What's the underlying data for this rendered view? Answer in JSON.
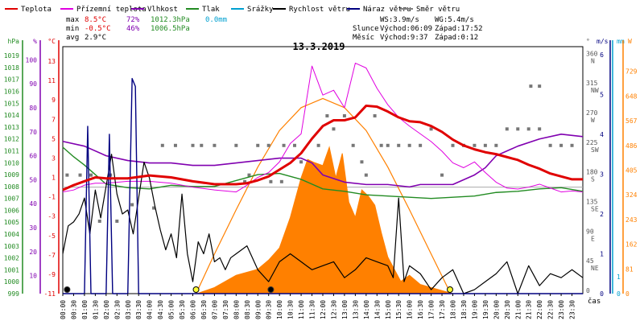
{
  "legend": [
    {
      "name": "legend-temperature",
      "label": "Teplota",
      "color": "#e00000"
    },
    {
      "name": "legend-ground-temperature",
      "label": "Přízemní teplota",
      "color": "#e000e0"
    },
    {
      "name": "legend-humidity",
      "label": "Vlhkost",
      "color": "#8000b0"
    },
    {
      "name": "legend-pressure",
      "label": "Tlak",
      "color": "#228b22"
    },
    {
      "name": "legend-precipitation",
      "label": "Srážky",
      "color": "#00a0d0"
    },
    {
      "name": "legend-wind-speed",
      "label": "Rychlost větru",
      "color": "#000000"
    },
    {
      "name": "legend-wind-gust",
      "label": "Náraz větru",
      "color": "#000080"
    },
    {
      "name": "legend-wind-direction",
      "label": "Směr větru",
      "color": "#808080"
    }
  ],
  "stats": {
    "max": {
      "label": "max",
      "temp": "8.5°C",
      "hum": "72%",
      "press": "1012.3hPa",
      "rain": "0.0mm"
    },
    "min": {
      "label": "min",
      "temp": "-0.5°C",
      "hum": "46%",
      "press": "1006.5hPa"
    },
    "avg": {
      "label": "avg",
      "temp": "2.9°C"
    }
  },
  "info": {
    "ws": "WS:3.9m/s",
    "wg": "WG:5.4m/s",
    "sun_label": "Slunce",
    "sunrise": "Východ:06:09",
    "sunset": "Západ:17:52",
    "moon_label": "Měsíc",
    "moonrise": "Východ:9:37",
    "moonset": "Západ:0:12"
  },
  "chart_data": {
    "type": "line",
    "title": "13.3.2019",
    "xlabel": "čas",
    "x_ticks": [
      "00:00",
      "00:30",
      "01:00",
      "01:30",
      "02:00",
      "02:30",
      "03:00",
      "03:30",
      "04:00",
      "04:30",
      "05:00",
      "05:30",
      "06:00",
      "06:30",
      "07:00",
      "07:30",
      "08:00",
      "08:30",
      "09:00",
      "09:30",
      "10:00",
      "10:30",
      "11:00",
      "11:30",
      "12:00",
      "12:30",
      "13:00",
      "13:30",
      "14:00",
      "14:30",
      "15:00",
      "15:30",
      "16:00",
      "16:30",
      "17:00",
      "17:30",
      "18:00",
      "18:30",
      "19:00",
      "19:30",
      "20:00",
      "20:30",
      "21:00",
      "21:30",
      "22:00",
      "22:30",
      "23:00",
      "23:30"
    ],
    "axes": {
      "pressure": {
        "label": "hPa",
        "ticks": [
          "999",
          "1000",
          "1001",
          "1002",
          "1003",
          "1004",
          "1005",
          "1006",
          "1007",
          "1008",
          "1009",
          "1010",
          "1011",
          "1012",
          "1013",
          "1014",
          "1015",
          "1016",
          "1017",
          "1018",
          "1019"
        ],
        "range": [
          999,
          1019.75
        ]
      },
      "humidity": {
        "label": "%",
        "ticks": [
          "10",
          "20",
          "30",
          "40",
          "50",
          "60",
          "70",
          "80",
          "90",
          "100"
        ],
        "range": [
          2.5,
          105.5
        ]
      },
      "temperature": {
        "label": "°C",
        "ticks": [
          "-11",
          "-9",
          "-7",
          "-5",
          "-3",
          "-1",
          "1",
          "3",
          "5",
          "7",
          "9",
          "11",
          "13"
        ],
        "range": [
          -11,
          14.5
        ]
      },
      "direction": {
        "label": "°",
        "ticks": [
          "0",
          "45 NE",
          "90 E",
          "135 SE",
          "180 S",
          "225 SW",
          "270 W",
          "315 NW",
          "360 N"
        ],
        "range": [
          0,
          375
        ]
      },
      "wind": {
        "label": "m/s",
        "ticks": [
          "0",
          "1",
          "2",
          "3",
          "4",
          "5",
          "6"
        ],
        "range": [
          0,
          6.2
        ]
      },
      "rain": {
        "label": "mm",
        "ticks": [
          "0",
          "1"
        ],
        "range": [
          0,
          14.5
        ]
      },
      "solar": {
        "label": "W",
        "ticks": [
          "0",
          "81",
          "162",
          "243",
          "324",
          "405",
          "486",
          "567",
          "648",
          "729"
        ],
        "range": [
          0,
          810
        ]
      }
    },
    "series": [
      {
        "name": "Teplota",
        "unit": "°C",
        "color": "#e00000",
        "x": [
          0,
          0.5,
          1,
          1.5,
          2,
          3,
          4,
          5,
          6,
          7,
          8,
          8.5,
          9,
          9.5,
          10,
          10.5,
          11,
          11.5,
          12,
          12.5,
          13,
          13.5,
          14,
          14.5,
          15,
          15.5,
          16,
          16.5,
          17,
          17.5,
          18,
          18.5,
          19,
          19.5,
          20,
          20.5,
          21,
          21.5,
          22,
          22.5,
          23,
          23.5,
          24
        ],
        "y": [
          -0.3,
          0.2,
          0.6,
          1.0,
          0.9,
          0.9,
          1.2,
          1.0,
          0.6,
          0.3,
          0.3,
          0.4,
          0.7,
          1.1,
          1.8,
          2.5,
          3.5,
          5.0,
          6.3,
          6.9,
          6.9,
          7.2,
          8.4,
          8.3,
          7.8,
          7.2,
          6.8,
          6.7,
          6.3,
          5.7,
          4.9,
          4.3,
          3.9,
          3.6,
          3.4,
          3.1,
          2.8,
          2.3,
          1.9,
          1.4,
          1.1,
          0.8,
          0.8
        ]
      },
      {
        "name": "Přízemní teplota",
        "unit": "°C",
        "color": "#e000e0",
        "x": [
          0,
          0.5,
          1,
          1.5,
          2,
          3,
          4,
          5,
          6,
          7,
          8,
          8.5,
          9,
          9.5,
          10,
          10.5,
          11,
          11.5,
          12,
          12.5,
          13,
          13.5,
          14,
          14.5,
          15,
          15.5,
          16,
          16.5,
          17,
          17.5,
          18,
          18.5,
          19,
          19.5,
          20,
          20.5,
          21,
          21.5,
          22,
          22.5,
          23,
          23.5,
          24
        ],
        "y": [
          -0.5,
          -0.3,
          0.2,
          0.4,
          0.4,
          0.6,
          0.6,
          0.4,
          0.0,
          -0.3,
          -0.5,
          0.2,
          1.0,
          1.5,
          2.6,
          4.5,
          5.5,
          12.5,
          9.5,
          10.0,
          8.2,
          12.8,
          12.3,
          10.2,
          8.5,
          7.2,
          6.3,
          5.5,
          4.7,
          3.7,
          2.5,
          2.0,
          2.6,
          1.5,
          0.5,
          -0.1,
          -0.2,
          0.0,
          0.3,
          -0.1,
          -0.5,
          -0.4,
          -0.5
        ]
      },
      {
        "name": "Vlhkost",
        "unit": "%",
        "color": "#8000b0",
        "x": [
          0,
          1,
          2,
          3,
          4,
          5,
          6,
          7,
          8,
          9,
          10,
          11,
          11.5,
          12,
          13,
          14,
          15,
          16,
          16.5,
          17,
          17.5,
          18,
          19,
          19.5,
          20,
          21,
          22,
          23,
          24
        ],
        "y": [
          66,
          64,
          60,
          58,
          57,
          57,
          56,
          56,
          57,
          58,
          59,
          59,
          57,
          52,
          49,
          48,
          48,
          47,
          48,
          48,
          48,
          48,
          52,
          55,
          60,
          64,
          67,
          69,
          68
        ]
      },
      {
        "name": "Tlak",
        "unit": "hPa",
        "color": "#228b22",
        "x": [
          0,
          0.5,
          1,
          1.5,
          2,
          3,
          4,
          5,
          6,
          7,
          8,
          9,
          10,
          11,
          12,
          13,
          14,
          15,
          16,
          17,
          18,
          19,
          20,
          21,
          22,
          23,
          24
        ],
        "y": [
          1011.3,
          1010.5,
          1009.8,
          1009.0,
          1008.2,
          1007.9,
          1007.8,
          1008.1,
          1008.0,
          1008.0,
          1008.5,
          1009.0,
          1009.1,
          1008.6,
          1007.8,
          1007.6,
          1007.3,
          1007.2,
          1007.1,
          1007.0,
          1007.1,
          1007.2,
          1007.5,
          1007.6,
          1007.8,
          1007.9,
          1007.6
        ]
      },
      {
        "name": "Rychlost větru",
        "unit": "m/s",
        "color": "#000000",
        "x": [
          0,
          0.25,
          0.5,
          0.75,
          1,
          1.25,
          1.5,
          1.75,
          2,
          2.25,
          2.5,
          2.75,
          3,
          3.25,
          3.5,
          3.75,
          4,
          4.25,
          4.5,
          4.75,
          5,
          5.25,
          5.5,
          5.75,
          6,
          6.25,
          6.5,
          6.75,
          7,
          7.25,
          7.5,
          7.75,
          8,
          8.5,
          9,
          9.5,
          10,
          10.5,
          11,
          11.5,
          12,
          12.5,
          13,
          13.5,
          14,
          14.5,
          15,
          15.25,
          15.5,
          15.75,
          16,
          16.5,
          17,
          17.5,
          18,
          18.5,
          19,
          19.5,
          20,
          20.5,
          21,
          21.5,
          22,
          22.5,
          23,
          23.5,
          24
        ],
        "y": [
          1.0,
          1.7,
          1.8,
          2.0,
          2.4,
          1.5,
          2.6,
          1.9,
          2.7,
          3.5,
          2.5,
          2.0,
          2.1,
          1.5,
          2.4,
          3.3,
          2.9,
          2.2,
          1.6,
          1.1,
          1.5,
          0.9,
          2.5,
          1.0,
          0.3,
          1.3,
          1.0,
          1.5,
          0.8,
          0.9,
          0.6,
          0.9,
          1.0,
          1.2,
          0.6,
          0.3,
          0.8,
          1.0,
          0.8,
          0.6,
          0.7,
          0.8,
          0.4,
          0.6,
          0.9,
          0.8,
          0.7,
          0.4,
          2.4,
          0.3,
          0.7,
          0.5,
          0.1,
          0.4,
          0.6,
          0.0,
          0.1,
          0.3,
          0.5,
          0.8,
          0.0,
          0.7,
          0.2,
          0.5,
          0.4,
          0.6,
          0.4
        ]
      },
      {
        "name": "Náraz větru",
        "unit": "m/s",
        "color": "#000080",
        "x": [
          0,
          1,
          1.15,
          1.3,
          1.5,
          2,
          2.15,
          2.3,
          2.5,
          3,
          3.2,
          3.35,
          3.5,
          4,
          24
        ],
        "y": [
          0,
          0,
          4.2,
          0,
          0,
          0,
          4.0,
          0,
          0,
          0,
          5.4,
          5.2,
          0,
          0,
          0
        ]
      },
      {
        "name": "Solar",
        "unit": "W",
        "color": "#ff8000",
        "x": [
          6.2,
          7,
          8,
          9,
          9.5,
          10,
          10.5,
          11,
          11.3,
          11.6,
          12,
          12.3,
          12.6,
          12.9,
          13.2,
          13.5,
          13.8,
          14.1,
          14.4,
          14.7,
          15,
          15.3,
          15.6,
          16,
          16.5,
          17,
          17.5,
          18
        ],
        "y": [
          0,
          20,
          60,
          80,
          110,
          150,
          250,
          380,
          440,
          430,
          420,
          480,
          380,
          460,
          300,
          250,
          340,
          320,
          290,
          200,
          120,
          80,
          40,
          60,
          30,
          20,
          10,
          0
        ]
      },
      {
        "name": "Theoretical solar",
        "unit": "W",
        "color": "#ff8000",
        "x": [
          6.15,
          7,
          8,
          9,
          10,
          11,
          12,
          13,
          14,
          15,
          16,
          17,
          17.9
        ],
        "y": [
          0,
          130,
          275,
          415,
          535,
          610,
          640,
          610,
          535,
          415,
          275,
          130,
          0
        ]
      }
    ],
    "direction_points": [
      {
        "x": 0.2,
        "y": 180
      },
      {
        "x": 0.8,
        "y": 180
      },
      {
        "x": 1.3,
        "y": 180
      },
      {
        "x": 2.2,
        "y": 180
      },
      {
        "x": 1.7,
        "y": 110
      },
      {
        "x": 2.5,
        "y": 110
      },
      {
        "x": 3.2,
        "y": 135
      },
      {
        "x": 4.2,
        "y": 130
      },
      {
        "x": 4.6,
        "y": 225
      },
      {
        "x": 5.2,
        "y": 225
      },
      {
        "x": 6.0,
        "y": 225
      },
      {
        "x": 6.4,
        "y": 225
      },
      {
        "x": 7.0,
        "y": 225
      },
      {
        "x": 8.0,
        "y": 225
      },
      {
        "x": 8.6,
        "y": 180
      },
      {
        "x": 9.0,
        "y": 225
      },
      {
        "x": 9.5,
        "y": 225
      },
      {
        "x": 10.2,
        "y": 225
      },
      {
        "x": 10.7,
        "y": 225
      },
      {
        "x": 11.0,
        "y": 200
      },
      {
        "x": 11.8,
        "y": 225
      },
      {
        "x": 12.2,
        "y": 270
      },
      {
        "x": 12.5,
        "y": 250
      },
      {
        "x": 13.0,
        "y": 270
      },
      {
        "x": 13.4,
        "y": 225
      },
      {
        "x": 13.8,
        "y": 200
      },
      {
        "x": 14.0,
        "y": 180
      },
      {
        "x": 14.4,
        "y": 270
      },
      {
        "x": 14.7,
        "y": 225
      },
      {
        "x": 15.0,
        "y": 225
      },
      {
        "x": 15.5,
        "y": 225
      },
      {
        "x": 16.0,
        "y": 225
      },
      {
        "x": 16.5,
        "y": 225
      },
      {
        "x": 17.0,
        "y": 250
      },
      {
        "x": 17.5,
        "y": 180
      },
      {
        "x": 18.0,
        "y": 225
      },
      {
        "x": 18.5,
        "y": 225
      },
      {
        "x": 19.0,
        "y": 225
      },
      {
        "x": 19.5,
        "y": 225
      },
      {
        "x": 20.0,
        "y": 225
      },
      {
        "x": 20.5,
        "y": 250
      },
      {
        "x": 21.0,
        "y": 250
      },
      {
        "x": 21.5,
        "y": 250
      },
      {
        "x": 22.0,
        "y": 250
      },
      {
        "x": 22.5,
        "y": 225
      },
      {
        "x": 23.0,
        "y": 225
      },
      {
        "x": 23.5,
        "y": 225
      },
      {
        "x": 21.6,
        "y": 315
      },
      {
        "x": 22.0,
        "y": 315
      },
      {
        "x": 8.4,
        "y": 170
      },
      {
        "x": 9.6,
        "y": 170
      },
      {
        "x": 10.1,
        "y": 170
      }
    ],
    "markers": [
      {
        "type": "moonset",
        "x": 0.2
      },
      {
        "type": "sunrise",
        "x": 6.15
      },
      {
        "type": "moonrise",
        "x": 9.6
      },
      {
        "type": "sunset",
        "x": 17.87
      }
    ]
  }
}
